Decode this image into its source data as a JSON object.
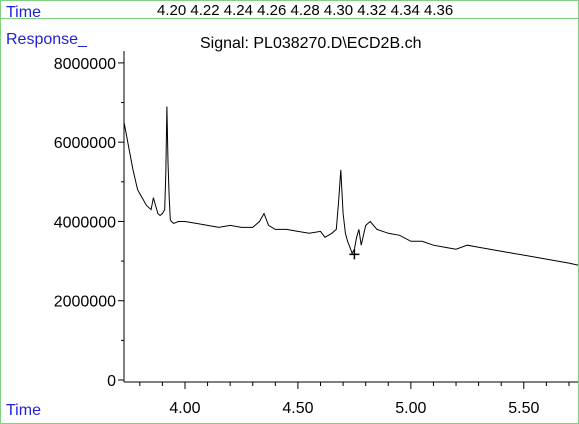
{
  "header": {
    "time_label": "Time",
    "time_ticks": [
      "4.20",
      "4.22",
      "4.24",
      "4.26",
      "4.28",
      "4.30",
      "4.32",
      "4.34",
      "4.36"
    ],
    "response_label": "Response_",
    "footer_time_label": "Time"
  },
  "colors": {
    "label_blue": "#1f1fd8",
    "frame_green": "#7fd27f",
    "trace": "#000000"
  },
  "chart_data": {
    "type": "line",
    "title": "Signal: PL038270.D\\ECD2B.ch",
    "xlim": [
      3.73,
      5.74
    ],
    "ylim": [
      -50000,
      8300000
    ],
    "xticks": [
      4.0,
      4.5,
      5.0,
      5.5
    ],
    "xtick_labels": [
      "4.00",
      "4.50",
      "5.00",
      "5.50"
    ],
    "yticks": [
      0,
      2000000,
      4000000,
      6000000,
      8000000
    ],
    "ytick_labels": [
      "0",
      "2000000",
      "4000000",
      "6000000",
      "8000000"
    ],
    "marker": {
      "x": 4.75,
      "y": 3170000,
      "symbol": "+"
    },
    "series": [
      {
        "x": [
          3.73,
          3.74,
          3.75,
          3.77,
          3.79,
          3.81,
          3.83,
          3.85,
          3.86,
          3.87,
          3.88,
          3.89,
          3.9,
          3.91,
          3.915,
          3.92,
          3.925,
          3.93,
          3.935,
          3.94,
          3.95,
          3.97,
          4.0,
          4.05,
          4.1,
          4.15,
          4.2,
          4.25,
          4.3,
          4.33,
          4.35,
          4.37,
          4.4,
          4.45,
          4.5,
          4.55,
          4.6,
          4.62,
          4.65,
          4.67,
          4.68,
          4.69,
          4.7,
          4.71,
          4.72,
          4.73,
          4.74,
          4.75,
          4.76,
          4.77,
          4.78,
          4.8,
          4.82,
          4.85,
          4.9,
          4.95,
          5.0,
          5.05,
          5.1,
          5.15,
          5.2,
          5.25,
          5.3,
          5.35,
          5.4,
          5.45,
          5.5,
          5.55,
          5.6,
          5.65,
          5.7,
          5.74
        ],
        "y": [
          6500000,
          6200000,
          5900000,
          5300000,
          4800000,
          4600000,
          4400000,
          4300000,
          4600000,
          4400000,
          4200000,
          4150000,
          4200000,
          4300000,
          5200000,
          6900000,
          5500000,
          4600000,
          4050000,
          4000000,
          3950000,
          4000000,
          4000000,
          3950000,
          3900000,
          3850000,
          3900000,
          3850000,
          3850000,
          4000000,
          4200000,
          3900000,
          3800000,
          3800000,
          3750000,
          3700000,
          3750000,
          3600000,
          3700000,
          3800000,
          4500000,
          5300000,
          4200000,
          3700000,
          3500000,
          3350000,
          3200000,
          3300000,
          3600000,
          3800000,
          3400000,
          3900000,
          4000000,
          3800000,
          3700000,
          3650000,
          3500000,
          3500000,
          3400000,
          3350000,
          3300000,
          3400000,
          3350000,
          3300000,
          3250000,
          3200000,
          3150000,
          3100000,
          3050000,
          3000000,
          2950000,
          2900000
        ]
      }
    ]
  }
}
